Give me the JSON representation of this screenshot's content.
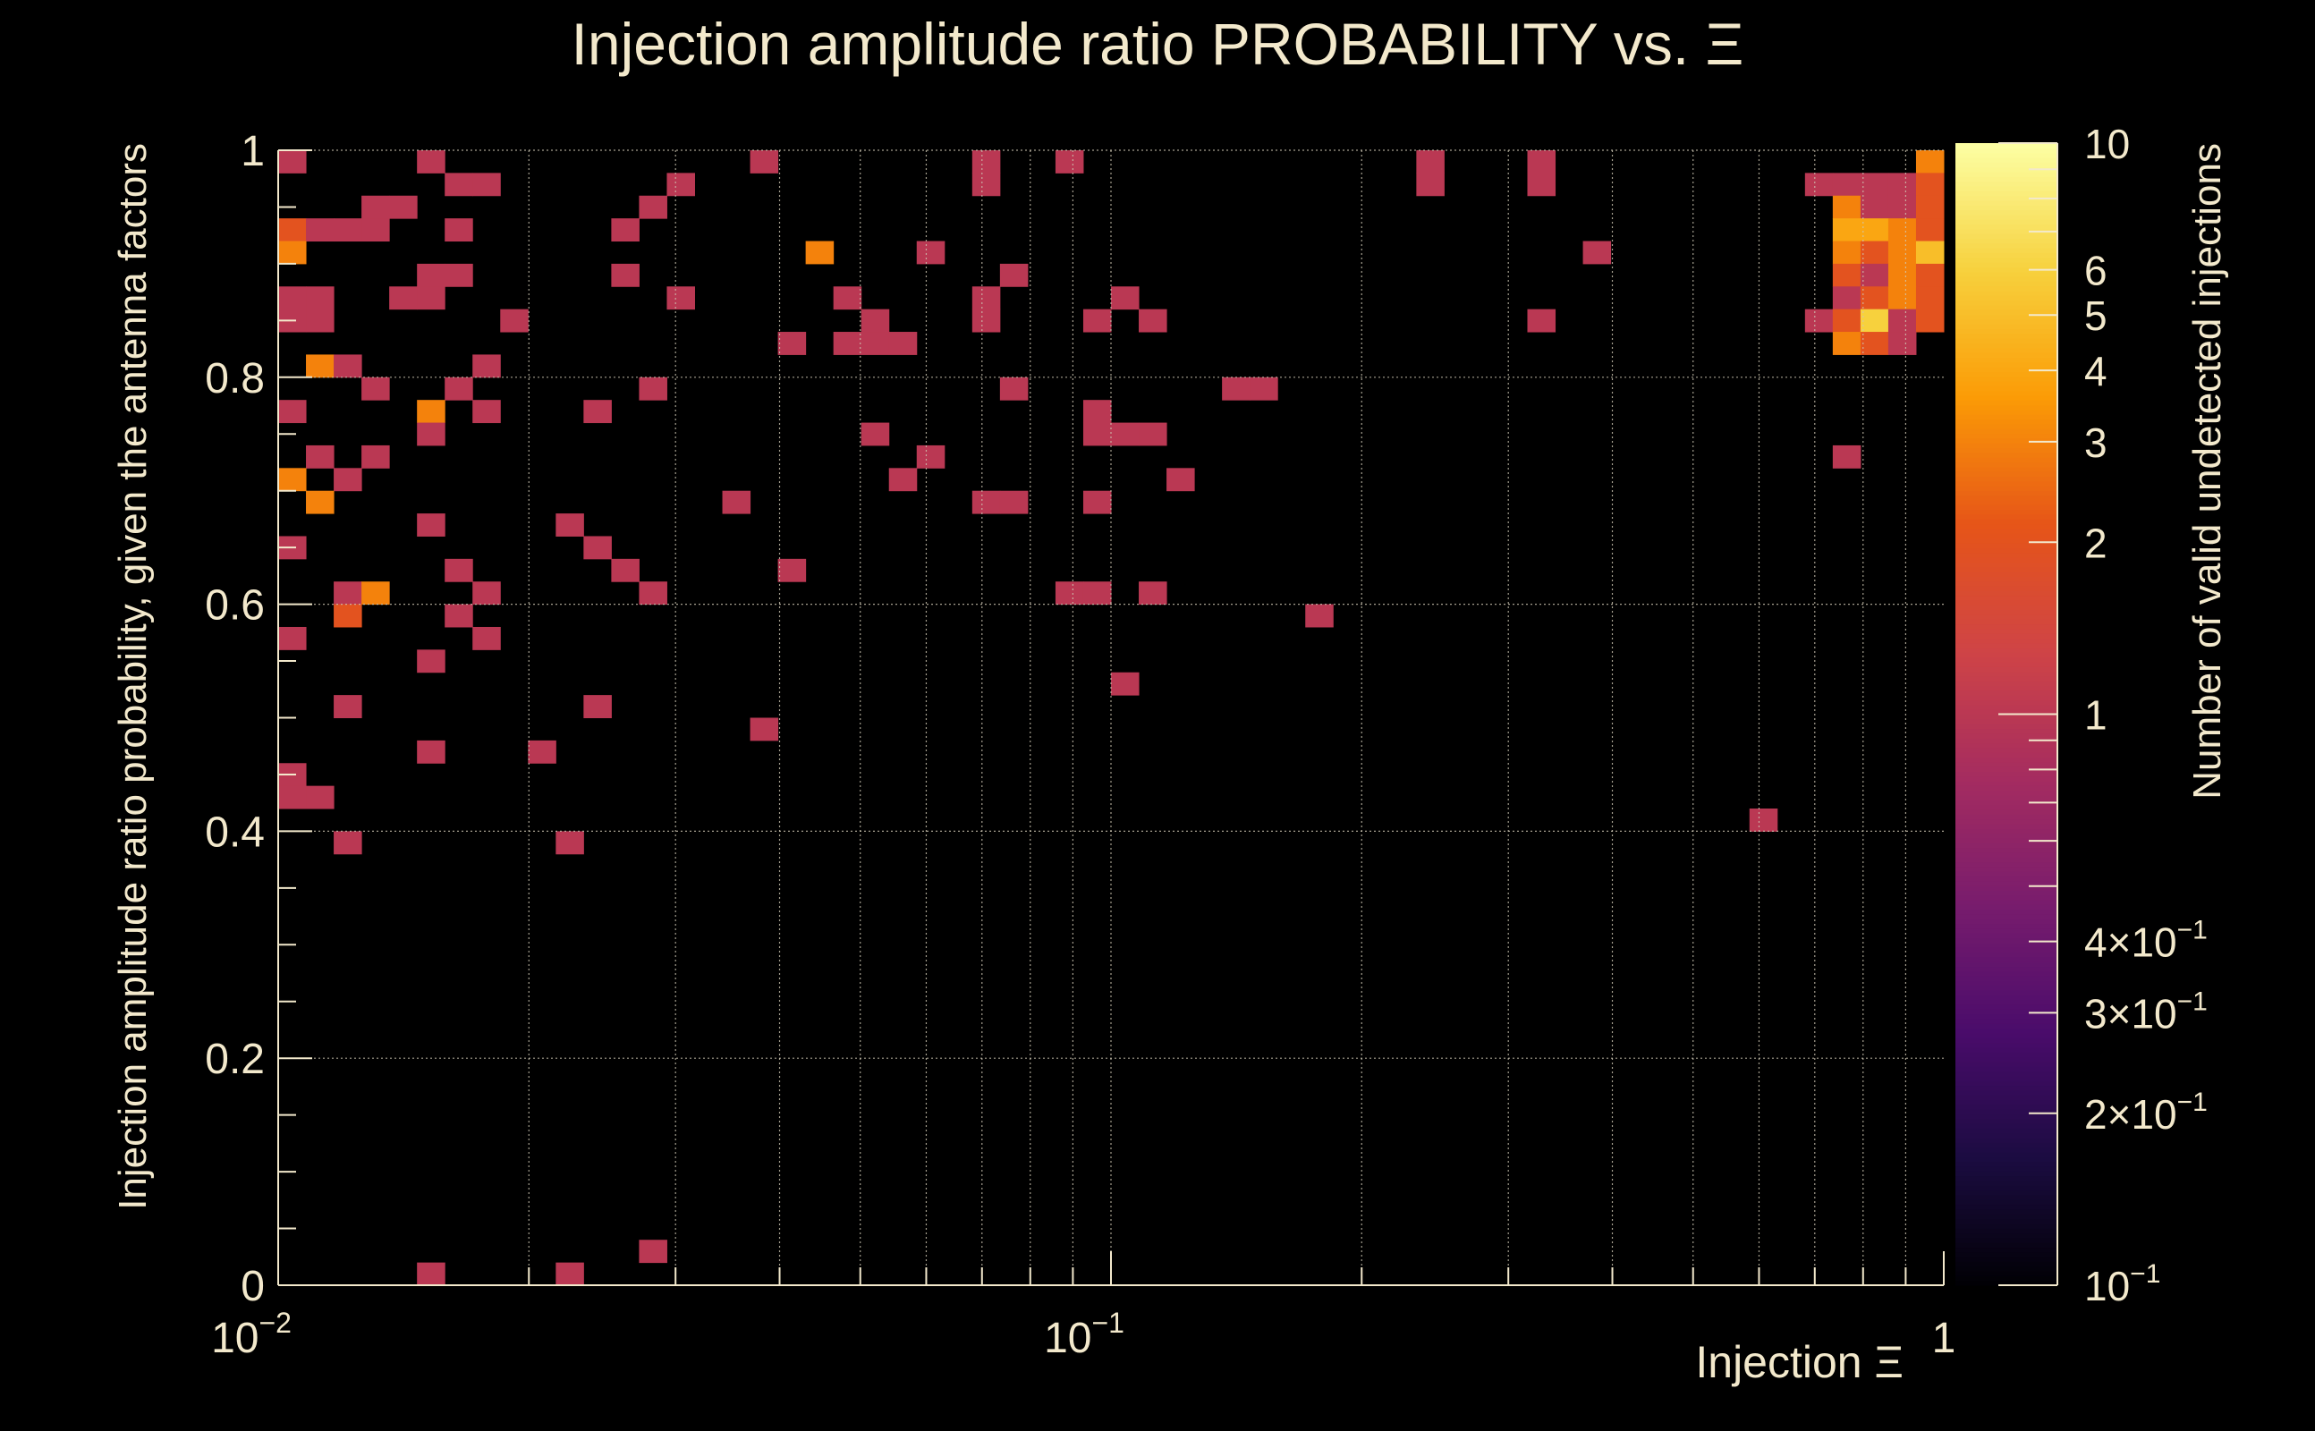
{
  "chart_data": {
    "type": "heatmap",
    "title": "Injection amplitude ratio PROBABILITY vs.  Ξ",
    "xlabel": "Injection Ξ",
    "ylabel": "Injection amplitude ratio probability, given the antenna factors",
    "zlabel": "Number of valid undetected injections",
    "x_scale": "log",
    "xlim": [
      0.01,
      1
    ],
    "ylim": [
      0,
      1
    ],
    "zlim": [
      0.1,
      10
    ],
    "grid": true,
    "x_bins": 60,
    "y_bins": 50,
    "x_tick_labels": [
      {
        "value": 0.01,
        "base": "10",
        "exp": "−2"
      },
      {
        "value": 0.1,
        "base": "10",
        "exp": "−1"
      },
      {
        "value": 1,
        "base": "1",
        "exp": ""
      }
    ],
    "y_tick_labels": [
      {
        "value": 0,
        "label": "0"
      },
      {
        "value": 0.2,
        "label": "0.2"
      },
      {
        "value": 0.4,
        "label": "0.4"
      },
      {
        "value": 0.6,
        "label": "0.6"
      },
      {
        "value": 0.8,
        "label": "0.8"
      },
      {
        "value": 1,
        "label": "1"
      }
    ],
    "z_tick_labels": [
      {
        "value": 10,
        "mant": "10",
        "exp": ""
      },
      {
        "value": 6,
        "mant": "6",
        "exp": ""
      },
      {
        "value": 5,
        "mant": "5",
        "exp": ""
      },
      {
        "value": 4,
        "mant": "4",
        "exp": ""
      },
      {
        "value": 3,
        "mant": "3",
        "exp": ""
      },
      {
        "value": 2,
        "mant": "2",
        "exp": ""
      },
      {
        "value": 1,
        "mant": "1",
        "exp": ""
      },
      {
        "value": 0.4,
        "mant": "4×10",
        "exp": "−1"
      },
      {
        "value": 0.3,
        "mant": "3×10",
        "exp": "−1"
      },
      {
        "value": 0.2,
        "mant": "2×10",
        "exp": "−1"
      },
      {
        "value": 0.1,
        "mant": "10",
        "exp": "−1"
      }
    ],
    "colormap": [
      "#000004",
      "#1b0c41",
      "#4a0c6b",
      "#781c6d",
      "#a52c60",
      "#cf4446",
      "#e65518",
      "#fb9b06",
      "#f7d13d",
      "#fcffa4"
    ],
    "cells": [
      [
        0,
        49,
        1
      ],
      [
        5,
        49,
        1
      ],
      [
        17,
        49,
        1
      ],
      [
        25,
        49,
        1
      ],
      [
        28,
        49,
        1
      ],
      [
        41,
        49,
        1
      ],
      [
        45,
        49,
        1
      ],
      [
        59,
        49,
        3
      ],
      [
        6,
        48,
        1
      ],
      [
        7,
        48,
        1
      ],
      [
        14,
        48,
        1
      ],
      [
        25,
        48,
        1
      ],
      [
        41,
        48,
        1
      ],
      [
        45,
        48,
        1
      ],
      [
        55,
        48,
        1
      ],
      [
        56,
        48,
        1
      ],
      [
        57,
        48,
        1
      ],
      [
        58,
        48,
        1
      ],
      [
        59,
        48,
        2
      ],
      [
        3,
        47,
        1
      ],
      [
        4,
        47,
        1
      ],
      [
        13,
        47,
        1
      ],
      [
        56,
        47,
        3
      ],
      [
        57,
        47,
        1
      ],
      [
        58,
        47,
        1
      ],
      [
        59,
        47,
        2
      ],
      [
        0,
        46,
        2
      ],
      [
        1,
        46,
        1
      ],
      [
        2,
        46,
        1
      ],
      [
        3,
        46,
        1
      ],
      [
        6,
        46,
        1
      ],
      [
        12,
        46,
        1
      ],
      [
        56,
        46,
        4
      ],
      [
        57,
        46,
        4
      ],
      [
        58,
        46,
        3
      ],
      [
        59,
        46,
        2
      ],
      [
        0,
        45,
        3
      ],
      [
        19,
        45,
        3
      ],
      [
        23,
        45,
        1
      ],
      [
        47,
        45,
        1
      ],
      [
        56,
        45,
        3
      ],
      [
        57,
        45,
        2
      ],
      [
        58,
        45,
        3
      ],
      [
        59,
        45,
        5
      ],
      [
        5,
        44,
        1
      ],
      [
        6,
        44,
        1
      ],
      [
        12,
        44,
        1
      ],
      [
        26,
        44,
        1
      ],
      [
        56,
        44,
        2
      ],
      [
        57,
        44,
        1
      ],
      [
        58,
        44,
        3
      ],
      [
        59,
        44,
        2
      ],
      [
        0,
        43,
        1
      ],
      [
        1,
        43,
        1
      ],
      [
        4,
        43,
        1
      ],
      [
        5,
        43,
        1
      ],
      [
        14,
        43,
        1
      ],
      [
        20,
        43,
        1
      ],
      [
        25,
        43,
        1
      ],
      [
        30,
        43,
        1
      ],
      [
        56,
        43,
        1
      ],
      [
        57,
        43,
        2
      ],
      [
        58,
        43,
        3
      ],
      [
        59,
        43,
        2
      ],
      [
        0,
        42,
        1
      ],
      [
        1,
        42,
        1
      ],
      [
        8,
        42,
        1
      ],
      [
        21,
        42,
        1
      ],
      [
        25,
        42,
        1
      ],
      [
        29,
        42,
        1
      ],
      [
        31,
        42,
        1
      ],
      [
        45,
        42,
        1
      ],
      [
        55,
        42,
        1
      ],
      [
        56,
        42,
        2
      ],
      [
        57,
        42,
        6
      ],
      [
        58,
        42,
        1
      ],
      [
        59,
        42,
        2
      ],
      [
        18,
        41,
        1
      ],
      [
        20,
        41,
        1
      ],
      [
        21,
        41,
        1
      ],
      [
        22,
        41,
        1
      ],
      [
        56,
        41,
        3
      ],
      [
        57,
        41,
        2
      ],
      [
        58,
        41,
        1
      ],
      [
        1,
        40,
        3
      ],
      [
        2,
        40,
        1
      ],
      [
        7,
        40,
        1
      ],
      [
        3,
        39,
        1
      ],
      [
        6,
        39,
        1
      ],
      [
        13,
        39,
        1
      ],
      [
        26,
        39,
        1
      ],
      [
        34,
        39,
        1
      ],
      [
        35,
        39,
        1
      ],
      [
        0,
        38,
        1
      ],
      [
        5,
        38,
        3
      ],
      [
        7,
        38,
        1
      ],
      [
        11,
        38,
        1
      ],
      [
        29,
        38,
        1
      ],
      [
        5,
        37,
        1
      ],
      [
        21,
        37,
        1
      ],
      [
        29,
        37,
        1
      ],
      [
        30,
        37,
        1
      ],
      [
        31,
        37,
        1
      ],
      [
        1,
        36,
        1
      ],
      [
        3,
        36,
        1
      ],
      [
        23,
        36,
        1
      ],
      [
        56,
        36,
        1
      ],
      [
        0,
        35,
        3
      ],
      [
        2,
        35,
        1
      ],
      [
        22,
        35,
        1
      ],
      [
        32,
        35,
        1
      ],
      [
        1,
        34,
        3
      ],
      [
        16,
        34,
        1
      ],
      [
        25,
        34,
        1
      ],
      [
        26,
        34,
        1
      ],
      [
        29,
        34,
        1
      ],
      [
        5,
        33,
        1
      ],
      [
        10,
        33,
        1
      ],
      [
        0,
        32,
        1
      ],
      [
        11,
        32,
        1
      ],
      [
        6,
        31,
        1
      ],
      [
        12,
        31,
        1
      ],
      [
        18,
        31,
        1
      ],
      [
        2,
        30,
        1
      ],
      [
        3,
        30,
        3
      ],
      [
        7,
        30,
        1
      ],
      [
        13,
        30,
        1
      ],
      [
        28,
        30,
        1
      ],
      [
        29,
        30,
        1
      ],
      [
        31,
        30,
        1
      ],
      [
        2,
        29,
        2
      ],
      [
        6,
        29,
        1
      ],
      [
        37,
        29,
        1
      ],
      [
        0,
        28,
        1
      ],
      [
        7,
        28,
        1
      ],
      [
        5,
        27,
        1
      ],
      [
        30,
        26,
        1
      ],
      [
        2,
        25,
        1
      ],
      [
        11,
        25,
        1
      ],
      [
        17,
        24,
        1
      ],
      [
        5,
        23,
        1
      ],
      [
        9,
        23,
        1
      ],
      [
        0,
        22,
        1
      ],
      [
        0,
        21,
        1
      ],
      [
        1,
        21,
        1
      ],
      [
        53,
        20,
        1
      ],
      [
        2,
        19,
        1
      ],
      [
        10,
        19,
        1
      ],
      [
        13,
        1,
        1
      ],
      [
        5,
        0,
        1
      ],
      [
        10,
        0,
        1
      ]
    ]
  }
}
